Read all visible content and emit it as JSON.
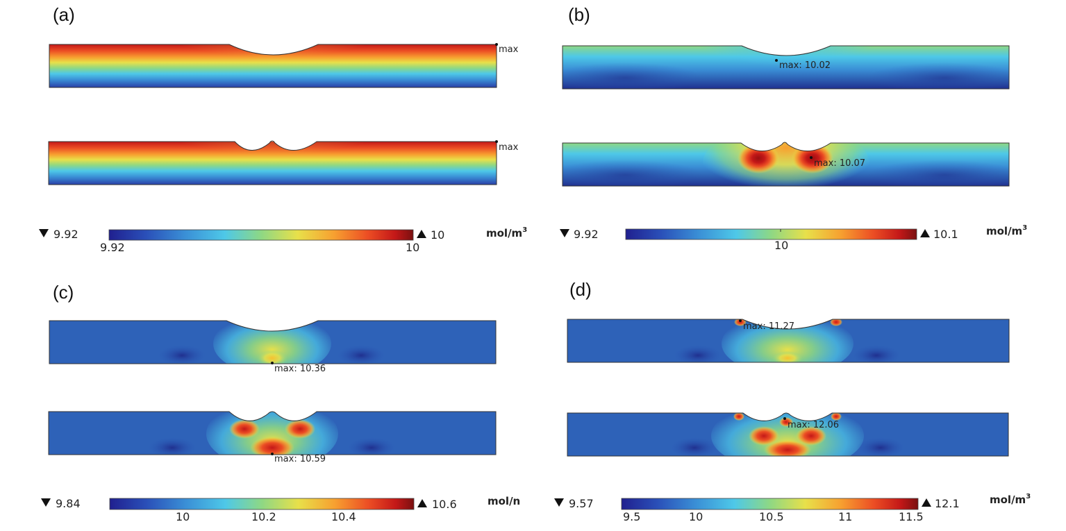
{
  "figure": {
    "panels": [
      {
        "id": "a",
        "label": "(a)",
        "unit": "mol/m",
        "unit_sup": "3",
        "min_label": "9.92",
        "max_label": "10",
        "cbar_ticks": [
          "9.92",
          "10"
        ],
        "top_annotation": "max",
        "bottom_annotation": "max"
      },
      {
        "id": "b",
        "label": "(b)",
        "unit": "mol/m",
        "unit_sup": "3",
        "min_label": "9.92",
        "max_label": "10.1",
        "cbar_ticks": [
          "10"
        ],
        "top_annotation": "max: 10.02",
        "bottom_annotation": "max: 10.07"
      },
      {
        "id": "c",
        "label": "(c)",
        "unit": "mol/n",
        "unit_sup": "",
        "min_label": "9.84",
        "max_label": "10.6",
        "cbar_ticks": [
          "10",
          "10.2",
          "10.4"
        ],
        "top_annotation": "max: 10.36",
        "bottom_annotation": "max: 10.59"
      },
      {
        "id": "d",
        "label": "(d)",
        "unit": "mol/m",
        "unit_sup": "3",
        "min_label": "9.57",
        "max_label": "12.1",
        "cbar_ticks": [
          "9.5",
          "10",
          "10.5",
          "11",
          "11.5"
        ],
        "top_annotation": "max: 11.27",
        "bottom_annotation": "max: 12.06"
      }
    ],
    "colormap": [
      "#20208f",
      "#2a4fb8",
      "#3a8fd6",
      "#4ec8e8",
      "#8ed884",
      "#e8e04a",
      "#f7a030",
      "#ec4e24",
      "#c41818",
      "#7a1010"
    ],
    "colors": {
      "background": "#ffffff",
      "marker": "#111111",
      "outline": "#333333"
    }
  }
}
